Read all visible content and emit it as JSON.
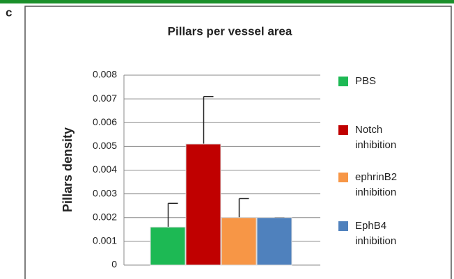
{
  "chart_data": {
    "type": "bar",
    "panel_label": "c",
    "title": "Pillars per vessel area",
    "ylabel": "Pillars density",
    "series": [
      {
        "name": "PBS",
        "color": "#1db954",
        "values": [
          0.0016
        ],
        "errors": [
          0.001
        ]
      },
      {
        "name": "Notch inhibition",
        "color": "#c00000",
        "values": [
          0.0051
        ],
        "errors": [
          0.002
        ]
      },
      {
        "name": "ephrinB2 inhibition",
        "color": "#f79646",
        "values": [
          0.002
        ],
        "errors": [
          0.0008
        ]
      },
      {
        "name": "EphB4 inhibition",
        "color": "#4f81bd",
        "values": [
          0.002
        ],
        "errors": [
          0
        ]
      }
    ],
    "ylim": [
      0,
      0.008
    ],
    "yticks": [
      0,
      0.001,
      0.002,
      0.003,
      0.004,
      0.005,
      0.006,
      0.007,
      0.008
    ],
    "grid": true
  }
}
